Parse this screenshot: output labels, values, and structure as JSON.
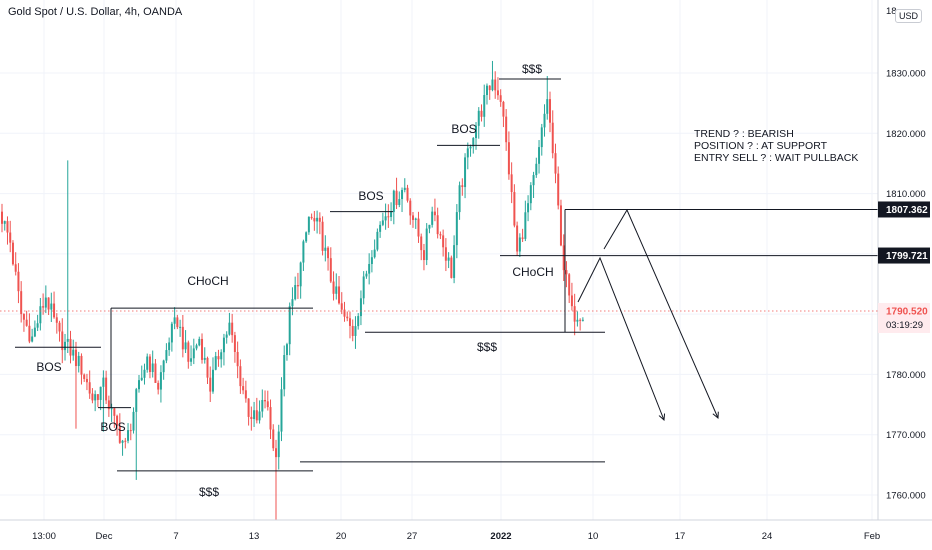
{
  "header": {
    "title": "Gold Spot / U.S. Dollar, 4h, OANDA",
    "currency": "USD"
  },
  "colors": {
    "up": "#26a69a",
    "down": "#ef5350",
    "line": "#131722",
    "current": "#ef5350",
    "dotted": "#ef5350",
    "level": "#131722"
  },
  "chart_data": {
    "type": "candlestick",
    "title": "Gold Spot / U.S. Dollar, 4h, OANDA",
    "ylim": [
      1755,
      1837
    ],
    "y_ticks": [
      1760,
      1770,
      1780,
      1790,
      1800,
      1810,
      1820,
      1830
    ],
    "y_tick_labels": [
      "1760.000",
      "1770.000",
      "1780.000",
      "1790.000",
      "1800.000",
      "1810.000",
      "1820.000",
      "1830.000"
    ],
    "top_tick_label": "18",
    "x_ticks": [
      "13:00",
      "Dec",
      "7",
      "13",
      "20",
      "27",
      "2022",
      "10",
      "17",
      "24",
      "Feb"
    ],
    "price_tags": [
      {
        "label": "1807.362",
        "value": 1807.362,
        "style": "level"
      },
      {
        "label": "1799.721",
        "value": 1799.721,
        "style": "level"
      }
    ],
    "current": {
      "price": "1790.520",
      "countdown": "03:19:29",
      "value": 1790.52
    },
    "anchors": [
      {
        "i": 0,
        "v": 1806
      },
      {
        "i": 3,
        "v": 1802
      },
      {
        "i": 7,
        "v": 1790
      },
      {
        "i": 11,
        "v": 1786
      },
      {
        "i": 16,
        "v": 1793
      },
      {
        "i": 21,
        "v": 1786
      },
      {
        "i": 25,
        "v": 1784
      },
      {
        "i": 29,
        "v": 1781
      },
      {
        "i": 33,
        "v": 1776
      },
      {
        "i": 37,
        "v": 1778
      },
      {
        "i": 41,
        "v": 1772
      },
      {
        "i": 45,
        "v": 1768
      },
      {
        "i": 49,
        "v": 1776
      },
      {
        "i": 53,
        "v": 1783
      },
      {
        "i": 57,
        "v": 1778
      },
      {
        "i": 61,
        "v": 1786
      },
      {
        "i": 64,
        "v": 1789
      },
      {
        "i": 68,
        "v": 1782
      },
      {
        "i": 72,
        "v": 1786
      },
      {
        "i": 76,
        "v": 1778
      },
      {
        "i": 80,
        "v": 1785
      },
      {
        "i": 83,
        "v": 1788
      },
      {
        "i": 86,
        "v": 1781
      },
      {
        "i": 90,
        "v": 1774
      },
      {
        "i": 93,
        "v": 1772
      },
      {
        "i": 96,
        "v": 1776
      },
      {
        "i": 100,
        "v": 1766
      },
      {
        "i": 102,
        "v": 1778
      },
      {
        "i": 105,
        "v": 1790
      },
      {
        "i": 109,
        "v": 1798
      },
      {
        "i": 112,
        "v": 1806
      },
      {
        "i": 116,
        "v": 1804
      },
      {
        "i": 120,
        "v": 1796
      },
      {
        "i": 124,
        "v": 1790
      },
      {
        "i": 128,
        "v": 1787
      },
      {
        "i": 131,
        "v": 1793
      },
      {
        "i": 135,
        "v": 1801
      },
      {
        "i": 139,
        "v": 1806
      },
      {
        "i": 143,
        "v": 1809
      },
      {
        "i": 147,
        "v": 1811
      },
      {
        "i": 150,
        "v": 1806
      },
      {
        "i": 154,
        "v": 1800
      },
      {
        "i": 157,
        "v": 1808
      },
      {
        "i": 160,
        "v": 1803
      },
      {
        "i": 164,
        "v": 1797
      },
      {
        "i": 167,
        "v": 1810
      },
      {
        "i": 171,
        "v": 1819
      },
      {
        "i": 175,
        "v": 1824
      },
      {
        "i": 179,
        "v": 1829
      },
      {
        "i": 182,
        "v": 1826
      },
      {
        "i": 185,
        "v": 1814
      },
      {
        "i": 188,
        "v": 1800
      },
      {
        "i": 191,
        "v": 1806
      },
      {
        "i": 195,
        "v": 1814
      },
      {
        "i": 199,
        "v": 1826
      },
      {
        "i": 202,
        "v": 1812
      },
      {
        "i": 205,
        "v": 1798
      },
      {
        "i": 208,
        "v": 1790
      },
      {
        "i": 212,
        "v": 1790.5
      }
    ]
  },
  "annotations": {
    "labels": [
      "BOS",
      "BOS",
      "CHoCH",
      "$$$",
      "BOS",
      "BOS",
      "$$$",
      "$$$",
      "CHoCH",
      "$$$"
    ],
    "note_lines": [
      "TREND ? : BEARISH",
      "POSITION ? : AT SUPPORT",
      "ENTRY SELL ? : WAIT PULLBACK"
    ],
    "levels": [
      {
        "label": "BOS",
        "value": 1784.5
      },
      {
        "label": "BOS",
        "value": 1774.5
      },
      {
        "label": "CHoCH",
        "value": 1791
      },
      {
        "label": "$$$",
        "value": 1764
      },
      {
        "label": "BOS",
        "value": 1807
      },
      {
        "label": "BOS",
        "value": 1818
      },
      {
        "label": "$$$",
        "value": 1829
      },
      {
        "label": "$$$",
        "value": 1787
      },
      {
        "label": "CHoCH",
        "value": 1799.7
      },
      {
        "label": "$$$",
        "value": 1765.5
      }
    ]
  }
}
